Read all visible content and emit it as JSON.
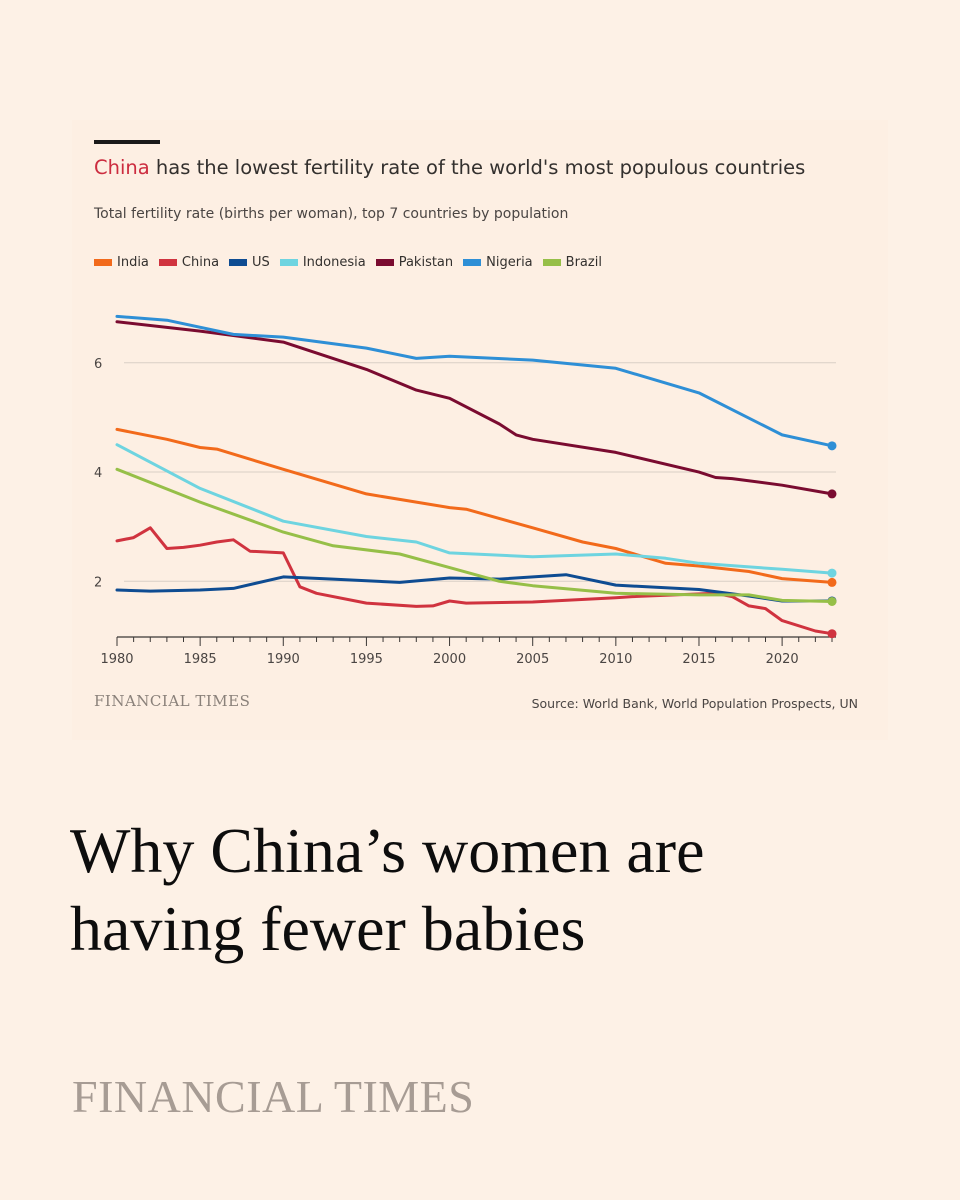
{
  "chart_data": {
    "type": "line",
    "title_highlight": "China",
    "title_rest": "has the lowest fertility rate of the world's most populous countries",
    "subtitle": "Total fertility rate (births per woman), top 7 countries by population",
    "xlabel": "",
    "ylabel": "",
    "xlim": [
      1980,
      2023
    ],
    "ylim": [
      0.98,
      7.15
    ],
    "x_ticks": [
      1980,
      1985,
      1990,
      1995,
      2000,
      2005,
      2010,
      2015,
      2020
    ],
    "y_ticks": [
      2,
      4,
      6
    ],
    "gridlines": true,
    "legend_position": "top",
    "series": [
      {
        "name": "India",
        "color": "#f26a1b",
        "x": [
          1980,
          1983,
          1985,
          1986,
          1990,
          1995,
          2000,
          2001,
          2005,
          2008,
          2010,
          2013,
          2015,
          2018,
          2020,
          2023
        ],
        "y": [
          4.78,
          4.6,
          4.45,
          4.42,
          4.05,
          3.6,
          3.35,
          3.32,
          2.98,
          2.72,
          2.6,
          2.33,
          2.28,
          2.18,
          2.05,
          1.98
        ]
      },
      {
        "name": "China",
        "color": "#d0333f",
        "x": [
          1980,
          1981,
          1982,
          1983,
          1984,
          1985,
          1986,
          1987,
          1988,
          1990,
          1991,
          1992,
          1995,
          1998,
          1999,
          2000,
          2001,
          2005,
          2010,
          2011,
          2016,
          2017,
          2018,
          2019,
          2020,
          2022,
          2023
        ],
        "y": [
          2.74,
          2.8,
          2.98,
          2.6,
          2.62,
          2.66,
          2.72,
          2.76,
          2.55,
          2.52,
          1.9,
          1.78,
          1.6,
          1.54,
          1.55,
          1.64,
          1.6,
          1.62,
          1.7,
          1.72,
          1.78,
          1.72,
          1.55,
          1.5,
          1.28,
          1.09,
          1.04
        ]
      },
      {
        "name": "US",
        "color": "#0e4c92",
        "x": [
          1980,
          1982,
          1985,
          1987,
          1990,
          1993,
          1997,
          2000,
          2003,
          2007,
          2010,
          2013,
          2015,
          2018,
          2020,
          2023
        ],
        "y": [
          1.84,
          1.82,
          1.84,
          1.87,
          2.08,
          2.04,
          1.98,
          2.06,
          2.04,
          2.12,
          1.93,
          1.88,
          1.85,
          1.73,
          1.64,
          1.64
        ]
      },
      {
        "name": "Indonesia",
        "color": "#6ed4e0",
        "x": [
          1980,
          1985,
          1990,
          1995,
          1998,
          2000,
          2005,
          2010,
          2013,
          2015,
          2020,
          2023
        ],
        "y": [
          4.5,
          3.7,
          3.1,
          2.82,
          2.72,
          2.52,
          2.45,
          2.5,
          2.42,
          2.33,
          2.22,
          2.15
        ]
      },
      {
        "name": "Pakistan",
        "color": "#7a0b30",
        "x": [
          1980,
          1985,
          1990,
          1995,
          1998,
          2000,
          2003,
          2004,
          2005,
          2010,
          2015,
          2016,
          2017,
          2020,
          2023
        ],
        "y": [
          6.75,
          6.58,
          6.38,
          5.88,
          5.5,
          5.35,
          4.88,
          4.68,
          4.6,
          4.36,
          4.0,
          3.9,
          3.88,
          3.76,
          3.6
        ]
      },
      {
        "name": "Nigeria",
        "color": "#2e8fd6",
        "x": [
          1980,
          1983,
          1987,
          1990,
          1995,
          1998,
          2000,
          2005,
          2010,
          2015,
          2020,
          2023
        ],
        "y": [
          6.85,
          6.78,
          6.52,
          6.47,
          6.27,
          6.08,
          6.12,
          6.05,
          5.9,
          5.45,
          4.68,
          4.48
        ]
      },
      {
        "name": "Brazil",
        "color": "#96bf48",
        "x": [
          1980,
          1985,
          1990,
          1993,
          1997,
          2000,
          2003,
          2005,
          2010,
          2015,
          2018,
          2020,
          2023
        ],
        "y": [
          4.05,
          3.45,
          2.9,
          2.65,
          2.5,
          2.25,
          2.0,
          1.92,
          1.78,
          1.75,
          1.75,
          1.65,
          1.63
        ]
      }
    ]
  },
  "footer": {
    "brand_small": "FINANCIAL TIMES",
    "source": "Source: World Bank, World Population Prospects, UN"
  },
  "headline": {
    "line1": "Why China’s women are",
    "line2": "having fewer babies"
  },
  "brand": {
    "name": "FINANCIAL TIMES"
  },
  "colors": {
    "background": "#fdf1e6",
    "card": "#fdefe3",
    "highlight": "#cc2c3f"
  }
}
